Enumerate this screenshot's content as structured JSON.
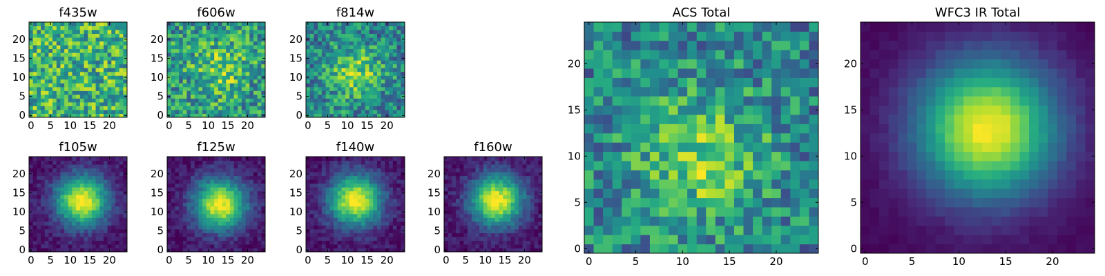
{
  "chart_data": [
    {
      "type": "heatmap",
      "title": "f435w",
      "xticks": [
        0,
        5,
        10,
        15,
        20
      ],
      "yticks": [
        0,
        5,
        10,
        15,
        20
      ],
      "xlim": [
        0,
        24
      ],
      "ylim": [
        0,
        24
      ],
      "colormap": "viridis",
      "grid_size": 25,
      "pattern": "noise",
      "peak": [
        12,
        12
      ],
      "colorbar": false
    },
    {
      "type": "heatmap",
      "title": "f606w",
      "xticks": [
        0,
        5,
        10,
        15,
        20
      ],
      "yticks": [
        0,
        5,
        10,
        15,
        20
      ],
      "xlim": [
        0,
        24
      ],
      "ylim": [
        0,
        24
      ],
      "colormap": "viridis",
      "grid_size": 25,
      "pattern": "noise-weak-center",
      "peak": [
        13,
        12
      ],
      "colorbar": false
    },
    {
      "type": "heatmap",
      "title": "f814w",
      "xticks": [
        0,
        5,
        10,
        15,
        20
      ],
      "yticks": [
        0,
        5,
        10,
        15,
        20
      ],
      "xlim": [
        0,
        24
      ],
      "ylim": [
        0,
        24
      ],
      "colormap": "viridis",
      "grid_size": 25,
      "pattern": "noise-center",
      "peak": [
        12,
        11
      ],
      "colorbar": false
    },
    {
      "type": "heatmap",
      "title": "f105w",
      "xticks": [
        0,
        5,
        10,
        15,
        20
      ],
      "yticks": [
        0,
        5,
        10,
        15,
        20
      ],
      "xlim": [
        0,
        24
      ],
      "ylim": [
        0,
        24
      ],
      "colormap": "viridis",
      "grid_size": 25,
      "pattern": "blob",
      "peak": [
        13,
        13
      ],
      "colorbar": false
    },
    {
      "type": "heatmap",
      "title": "f125w",
      "xticks": [
        0,
        5,
        10,
        15,
        20
      ],
      "yticks": [
        0,
        5,
        10,
        15,
        20
      ],
      "xlim": [
        0,
        24
      ],
      "ylim": [
        0,
        24
      ],
      "colormap": "viridis",
      "grid_size": 25,
      "pattern": "blob",
      "peak": [
        13,
        12
      ],
      "colorbar": false
    },
    {
      "type": "heatmap",
      "title": "f140w",
      "xticks": [
        0,
        5,
        10,
        15,
        20
      ],
      "yticks": [
        0,
        5,
        10,
        15,
        20
      ],
      "xlim": [
        0,
        24
      ],
      "ylim": [
        0,
        24
      ],
      "colormap": "viridis",
      "grid_size": 25,
      "pattern": "blob",
      "peak": [
        12,
        13
      ],
      "colorbar": false
    },
    {
      "type": "heatmap",
      "title": "f160w",
      "xticks": [
        0,
        5,
        10,
        15,
        20
      ],
      "yticks": [
        0,
        5,
        10,
        15,
        20
      ],
      "xlim": [
        0,
        24
      ],
      "ylim": [
        0,
        24
      ],
      "colormap": "viridis",
      "grid_size": 25,
      "pattern": "blob",
      "peak": [
        13,
        13
      ],
      "colorbar": false
    },
    {
      "type": "heatmap",
      "title": "ACS Total",
      "xticks": [
        0,
        5,
        10,
        15,
        20
      ],
      "yticks": [
        0,
        5,
        10,
        15,
        20
      ],
      "xlim": [
        0,
        24
      ],
      "ylim": [
        0,
        24
      ],
      "colormap": "viridis",
      "grid_size": 25,
      "pattern": "noise-center",
      "peak": [
        12,
        10
      ],
      "colorbar": false
    },
    {
      "type": "heatmap",
      "title": "WFC3 IR Total",
      "xticks": [
        0,
        5,
        10,
        15,
        20
      ],
      "yticks": [
        0,
        5,
        10,
        15,
        20
      ],
      "xlim": [
        0,
        24
      ],
      "ylim": [
        0,
        24
      ],
      "colormap": "viridis",
      "grid_size": 25,
      "pattern": "smooth-blob",
      "peak": [
        13,
        13
      ],
      "colorbar": false
    }
  ]
}
